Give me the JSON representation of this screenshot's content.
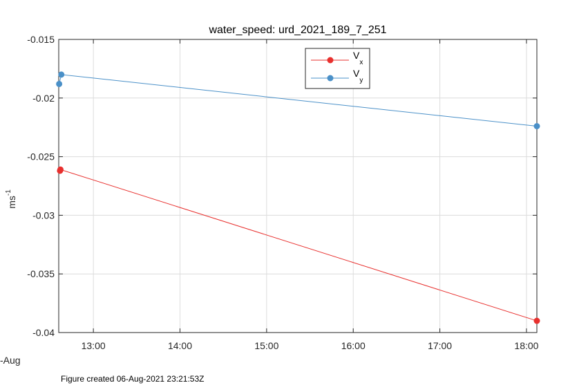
{
  "chart_data": {
    "type": "line",
    "title": "water_speed: urd_2021_189_7_251",
    "ylabel": {
      "base": "ms",
      "superscript": "-1"
    },
    "xlabel": "",
    "date_label": "-Aug",
    "x_ticks": [
      "13:00",
      "14:00",
      "15:00",
      "16:00",
      "17:00",
      "18:00"
    ],
    "y_ticks": [
      "-0.015",
      "-0.02",
      "-0.025",
      "-0.03",
      "-0.035",
      "-0.04"
    ],
    "x_tick_values": [
      13,
      14,
      15,
      16,
      17,
      18
    ],
    "y_tick_values": [
      -0.015,
      -0.02,
      -0.025,
      -0.03,
      -0.035,
      -0.04
    ],
    "xlim": [
      12.6,
      18.12
    ],
    "ylim": [
      -0.04,
      -0.015
    ],
    "grid": true,
    "legend_position": "top-center",
    "series": [
      {
        "name": "V",
        "subscript": "x",
        "color": "#e8302e",
        "x": [
          12.615,
          12.62,
          18.12
        ],
        "y": [
          -0.0262,
          -0.0261,
          -0.039
        ]
      },
      {
        "name": "V",
        "subscript": "y",
        "color": "#4a90c8",
        "x": [
          12.605,
          12.63,
          18.12
        ],
        "y": [
          -0.0188,
          -0.018,
          -0.0224
        ]
      }
    ]
  },
  "footer": "Figure created 06-Aug-2021 23:21:53Z"
}
